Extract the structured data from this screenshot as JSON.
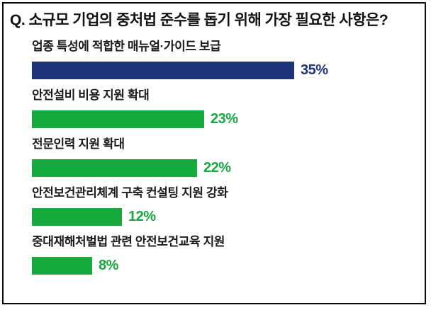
{
  "title": "Q. 소규모 기업의 중처법 준수를 돕기 위해 가장 필요한 사항은?",
  "chart_data": {
    "type": "bar",
    "orientation": "horizontal",
    "title": "Q. 소규모 기업의 중처법 준수를 돕기 위해 가장 필요한 사항은?",
    "categories": [
      "업종 특성에 적합한 매뉴얼·가이드 보급",
      "안전설비 비용 지원 확대",
      "전문인력 지원 확대",
      "안전보건관리체계 구축 컨설팅 지원 강화",
      "중대재해처벌법 관련 안전보건교육 지원"
    ],
    "values": [
      35,
      23,
      22,
      12,
      8
    ],
    "value_labels": [
      "35%",
      "23%",
      "22%",
      "12%",
      "8%"
    ],
    "unit": "%",
    "xlim": [
      0,
      40
    ],
    "grid": false,
    "legend": false,
    "bar_colors": [
      "#1e3478",
      "#16a93e",
      "#16a93e",
      "#16a93e",
      "#16a93e"
    ],
    "colors": {
      "highlight_navy": "#1e3478",
      "default_green": "#16a93e",
      "label_text": "#1a1a1a",
      "title_text": "#111111",
      "frame_border": "#0a0a0a"
    }
  }
}
